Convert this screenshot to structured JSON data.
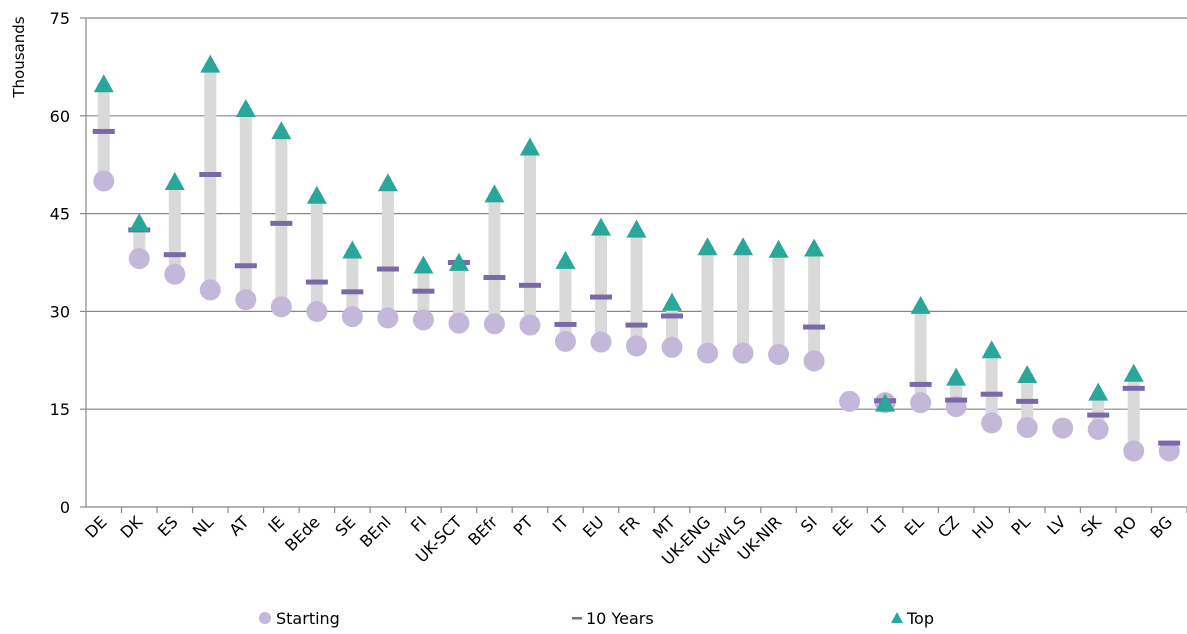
{
  "chart_data": {
    "type": "range-dot",
    "ylabel": "Thousands",
    "ylim": [
      0,
      75
    ],
    "yticks": [
      0,
      15,
      30,
      45,
      60,
      75
    ],
    "grid": true,
    "legend_position": "bottom",
    "categories": [
      "DE",
      "DK",
      "ES",
      "NL",
      "AT",
      "IE",
      "BEde",
      "SE",
      "BEnl",
      "FI",
      "UK-SCT",
      "BEfr",
      "PT",
      "IT",
      "EU",
      "FR",
      "MT",
      "UK-ENG",
      "UK-WLS",
      "UK-NIR",
      "SI",
      "EE",
      "LT",
      "EL",
      "CZ",
      "HU",
      "PL",
      "LV",
      "SK",
      "RO",
      "BG"
    ],
    "series": [
      {
        "name": "Starting",
        "marker": "circle",
        "color": "#c3b8d9",
        "values": [
          50.0,
          38.1,
          35.7,
          33.3,
          31.8,
          30.7,
          30.0,
          29.2,
          29.0,
          28.7,
          28.2,
          28.1,
          27.9,
          25.4,
          25.3,
          24.7,
          24.5,
          23.6,
          23.6,
          23.4,
          22.4,
          16.2,
          16.0,
          16.0,
          15.4,
          12.9,
          12.2,
          12.1,
          11.9,
          8.6,
          8.6
        ]
      },
      {
        "name": "10 Years",
        "marker": "dash",
        "color": "#7b68a8",
        "values": [
          57.6,
          42.5,
          38.7,
          51.0,
          37.0,
          43.5,
          34.5,
          33.0,
          36.5,
          33.1,
          37.5,
          35.2,
          34.0,
          28.0,
          32.2,
          27.9,
          29.3,
          null,
          null,
          null,
          27.6,
          null,
          16.3,
          18.8,
          16.4,
          17.3,
          16.2,
          null,
          14.1,
          18.2,
          9.8
        ]
      },
      {
        "name": "Top",
        "marker": "triangle",
        "color": "#2aa79b",
        "values": [
          65.0,
          43.7,
          50.0,
          68.0,
          61.2,
          57.8,
          47.9,
          39.5,
          49.8,
          37.2,
          37.6,
          48.1,
          55.3,
          37.9,
          43.0,
          42.7,
          31.5,
          40.0,
          40.0,
          39.6,
          39.8,
          null,
          16.0,
          31.0,
          20.0,
          24.2,
          20.4,
          null,
          17.7,
          20.6,
          null
        ]
      }
    ],
    "range_bar_color": "#d9d9d9",
    "gridline_color": "#888888"
  }
}
